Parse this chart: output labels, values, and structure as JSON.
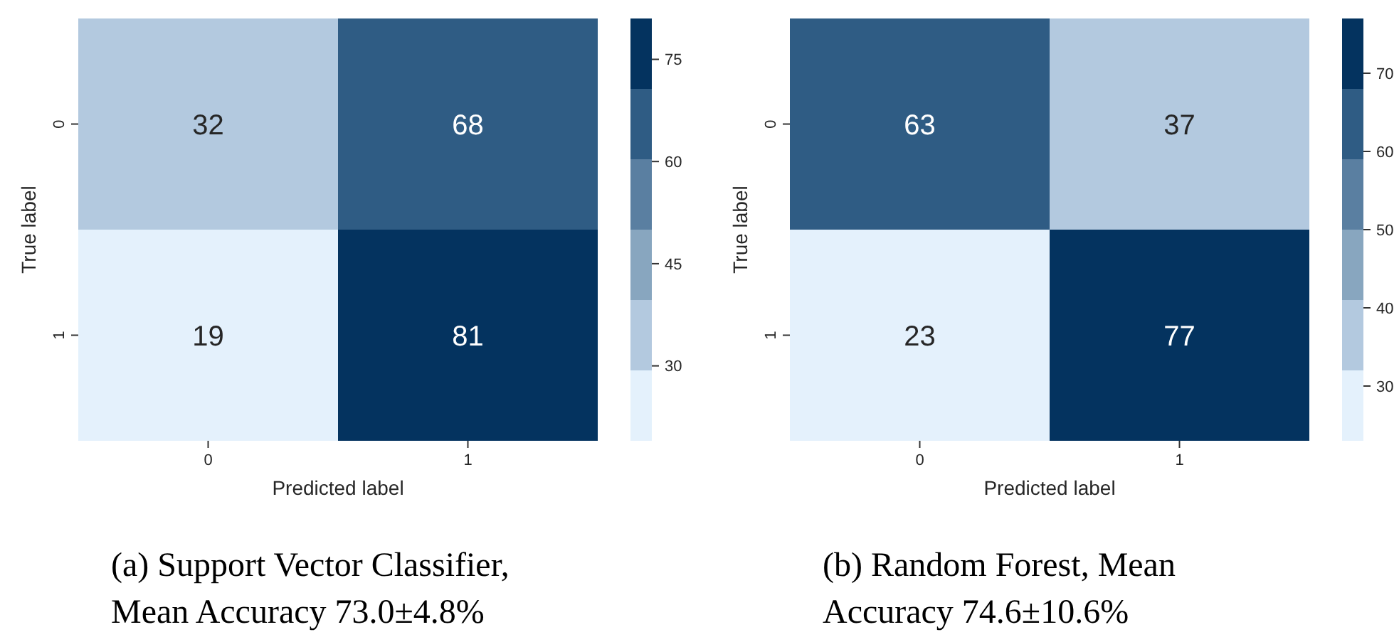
{
  "chart_data": [
    {
      "type": "heatmap",
      "title": "(a) Support Vector Classifier, Mean Accuracy 73.0±4.8%",
      "xlabel": "Predicted label",
      "ylabel": "True label",
      "categories": [
        "0",
        "1"
      ],
      "y_categories": [
        "0",
        "1"
      ],
      "cells": [
        [
          32,
          68
        ],
        [
          19,
          81
        ]
      ],
      "data_labels": true,
      "clim": [
        19,
        81
      ],
      "cticks": [
        30,
        45,
        60,
        75
      ],
      "colors": [
        "#e4f1fc",
        "#b3c9df",
        "#88a6bf",
        "#5a7fa1",
        "#2f5c84",
        "#04335f"
      ]
    },
    {
      "type": "heatmap",
      "title": "(b) Random Forest, Mean Accuracy 74.6±10.6%",
      "xlabel": "Predicted label",
      "ylabel": "True label",
      "categories": [
        "0",
        "1"
      ],
      "y_categories": [
        "0",
        "1"
      ],
      "cells": [
        [
          63,
          37
        ],
        [
          23,
          77
        ]
      ],
      "data_labels": true,
      "clim": [
        23,
        77
      ],
      "cticks": [
        30,
        40,
        50,
        60,
        70
      ],
      "colors": [
        "#e4f1fc",
        "#b3c9df",
        "#88a6bf",
        "#5a7fa1",
        "#2f5c84",
        "#04335f"
      ]
    }
  ]
}
